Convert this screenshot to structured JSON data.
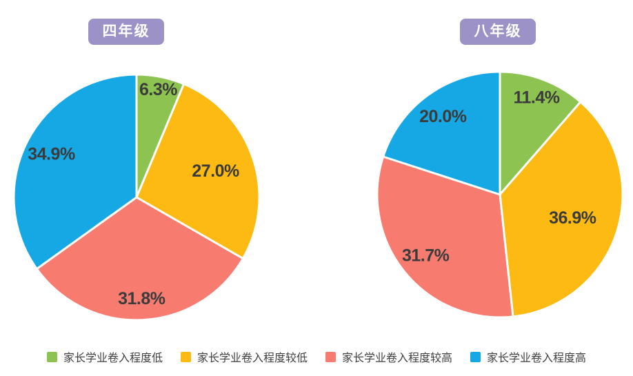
{
  "page": {
    "background": "#ffffff"
  },
  "colors": {
    "low": "#8DC350",
    "slightly_low": "#FCBA12",
    "slightly_high": "#F87B70",
    "high": "#16A8E5",
    "title_badge": "#9C92C8",
    "slice_label_text": "#3b3b3b",
    "legend_text": "#3f3f3f"
  },
  "chart_data": [
    {
      "type": "pie",
      "id": "grade4",
      "title": "四年级",
      "labels": [
        "家长学业卷入程度低",
        "家长学业卷入程度较低",
        "家长学业卷入程度较高",
        "家长学业卷入程度高"
      ],
      "slice_keys": [
        "low",
        "slightly-low",
        "slightly-high",
        "high"
      ],
      "values": [
        6.3,
        27.0,
        31.8,
        34.9
      ],
      "value_labels": [
        "6.3%",
        "27.0%",
        "31.8%",
        "34.9%"
      ],
      "colors": [
        "#8DC350",
        "#FCBA12",
        "#F87B70",
        "#16A8E5"
      ],
      "start_angle_deg": 0,
      "direction": "clockwise",
      "label_radius_frac": [
        0.9,
        0.68,
        0.82,
        0.78
      ],
      "legend_position": "bottom"
    },
    {
      "type": "pie",
      "id": "grade8",
      "title": "八年级",
      "labels": [
        "家长学业卷入程度低",
        "家长学业卷入程度较低",
        "家长学业卷入程度较高",
        "家长学业卷入程度高"
      ],
      "slice_keys": [
        "low",
        "slightly-low",
        "slightly-high",
        "high"
      ],
      "values": [
        11.4,
        36.9,
        31.7,
        20.0
      ],
      "value_labels": [
        "11.4%",
        "36.9%",
        "31.7%",
        "20.0%"
      ],
      "colors": [
        "#8DC350",
        "#FCBA12",
        "#F87B70",
        "#16A8E5"
      ],
      "start_angle_deg": 0,
      "direction": "clockwise",
      "label_radius_frac": [
        0.85,
        0.62,
        0.78,
        0.79
      ],
      "legend_position": "bottom"
    }
  ],
  "legend": {
    "items": [
      {
        "key": "low",
        "label": "家长学业卷入程度低",
        "color": "#8DC350"
      },
      {
        "key": "slightly-low",
        "label": "家长学业卷入程度较低",
        "color": "#FCBA12"
      },
      {
        "key": "slightly-high",
        "label": "家长学业卷入程度较高",
        "color": "#F87B70"
      },
      {
        "key": "high",
        "label": "家长学业卷入程度高",
        "color": "#16A8E5"
      }
    ]
  }
}
